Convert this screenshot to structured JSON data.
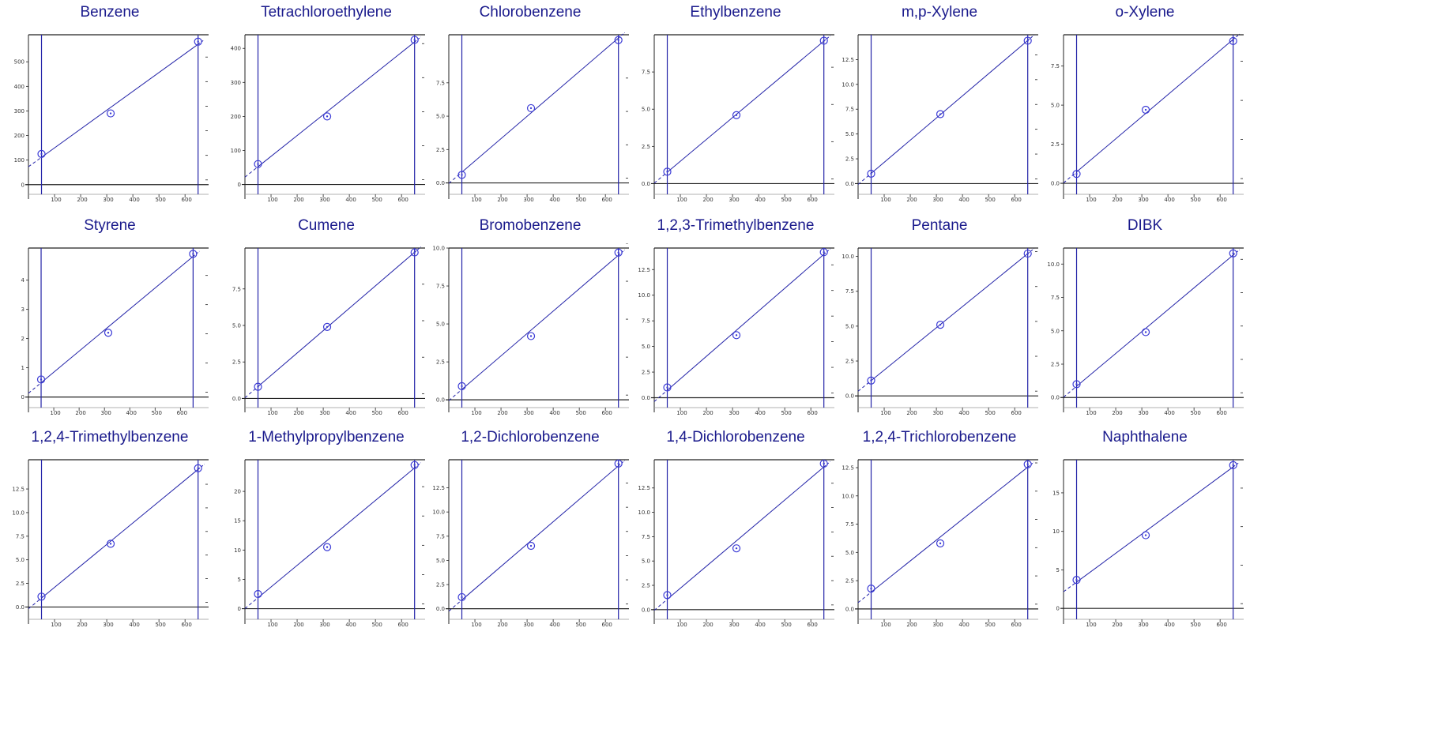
{
  "colors": {
    "title": "#1a1a8c",
    "line": "#2323a8",
    "point": "#3b3bd6",
    "axis": "#222222"
  },
  "chart_data": [
    {
      "type": "scatter",
      "title": "Benzene",
      "x": [
        50,
        315,
        650
      ],
      "y": [
        125,
        290,
        582
      ],
      "xlim": [
        0,
        660
      ],
      "ylim": [
        -20,
        610
      ],
      "xticks": [
        "100",
        "200",
        "300",
        "400",
        "500",
        "600"
      ],
      "yticks": [
        "0",
        "100",
        "200",
        "300",
        "400",
        "500"
      ],
      "ytick_values": [
        0,
        100,
        200,
        300,
        400,
        500
      ],
      "grid": false
    },
    {
      "type": "scatter",
      "title": "Tetrachloroethylene",
      "x": [
        50,
        315,
        650
      ],
      "y": [
        60,
        200,
        425
      ],
      "xlim": [
        0,
        660
      ],
      "ylim": [
        -15,
        440
      ],
      "xticks": [
        "100",
        "200",
        "300",
        "400",
        "500",
        "600"
      ],
      "yticks": [
        "0",
        "100",
        "200",
        "300",
        "400"
      ],
      "ytick_values": [
        0,
        100,
        200,
        300,
        400
      ],
      "grid": false
    },
    {
      "type": "scatter",
      "title": "Chlorobenzene",
      "x": [
        50,
        315,
        650
      ],
      "y": [
        0.6,
        5.6,
        10.7
      ],
      "xlim": [
        0,
        660
      ],
      "ylim": [
        -0.5,
        11.1
      ],
      "xticks": [
        "100",
        "200",
        "300",
        "400",
        "500",
        "600"
      ],
      "yticks": [
        "0.0",
        "2.5",
        "5.0",
        "7.5"
      ],
      "ytick_values": [
        0,
        2.5,
        5,
        7.5
      ],
      "grid": false
    },
    {
      "type": "scatter",
      "title": "Ethylbenzene",
      "x": [
        50,
        315,
        650
      ],
      "y": [
        0.8,
        4.6,
        9.6
      ],
      "xlim": [
        0,
        660
      ],
      "ylim": [
        -0.4,
        10.0
      ],
      "xticks": [
        "100",
        "200",
        "300",
        "400",
        "500",
        "600"
      ],
      "yticks": [
        "0.0",
        "2.5",
        "5.0",
        "7.5"
      ],
      "ytick_values": [
        0,
        2.5,
        5,
        7.5
      ],
      "grid": false
    },
    {
      "type": "scatter",
      "title": "m,p-Xylene",
      "x": [
        50,
        315,
        650
      ],
      "y": [
        1.0,
        7.0,
        14.4
      ],
      "xlim": [
        0,
        660
      ],
      "ylim": [
        -0.6,
        15.0
      ],
      "xticks": [
        "100",
        "200",
        "300",
        "400",
        "500",
        "600"
      ],
      "yticks": [
        "0.0",
        "2.5",
        "5.0",
        "7.5",
        "10.0",
        "12.5"
      ],
      "ytick_values": [
        0,
        2.5,
        5,
        7.5,
        10,
        12.5
      ],
      "grid": false
    },
    {
      "type": "scatter",
      "title": "o-Xylene",
      "x": [
        50,
        315,
        650
      ],
      "y": [
        0.6,
        4.7,
        9.1
      ],
      "xlim": [
        0,
        660
      ],
      "ylim": [
        -0.4,
        9.5
      ],
      "xticks": [
        "100",
        "200",
        "300",
        "400",
        "500",
        "600"
      ],
      "yticks": [
        "0.0",
        "2.5",
        "5.0",
        "7.5"
      ],
      "ytick_values": [
        0,
        2.5,
        5,
        7.5
      ],
      "grid": false
    },
    {
      "type": "scatter",
      "title": "Styrene",
      "x": [
        50,
        315,
        650
      ],
      "y": [
        0.6,
        2.2,
        4.9
      ],
      "xlim": [
        0,
        680
      ],
      "ylim": [
        -0.2,
        5.1
      ],
      "xticks": [
        "100",
        "200",
        "300",
        "400",
        "500",
        "600"
      ],
      "yticks": [
        "0",
        "1",
        "2",
        "3",
        "4"
      ],
      "ytick_values": [
        0,
        1,
        2,
        3,
        4
      ],
      "grid": false
    },
    {
      "type": "scatter",
      "title": "Cumene",
      "x": [
        50,
        315,
        650
      ],
      "y": [
        0.8,
        4.9,
        10.0
      ],
      "xlim": [
        0,
        660
      ],
      "ylim": [
        -0.3,
        10.3
      ],
      "xticks": [
        "100",
        "200",
        "300",
        "400",
        "500",
        "600"
      ],
      "yticks": [
        "0.0",
        "2.5",
        "5.0",
        "7.5"
      ],
      "ytick_values": [
        0,
        2.5,
        5,
        7.5
      ],
      "grid": false
    },
    {
      "type": "scatter",
      "title": "Bromobenzene",
      "x": [
        50,
        315,
        650
      ],
      "y": [
        0.9,
        4.2,
        9.7
      ],
      "xlim": [
        0,
        660
      ],
      "ylim": [
        -0.2,
        10.0
      ],
      "xticks": [
        "100",
        "200",
        "300",
        "400",
        "500",
        "600"
      ],
      "yticks": [
        "0.0",
        "2.5",
        "5.0",
        "7.5",
        "10.0"
      ],
      "ytick_values": [
        0,
        2.5,
        5,
        7.5,
        10
      ],
      "grid": false
    },
    {
      "type": "scatter",
      "title": "1,2,3-Trimethylbenzene",
      "x": [
        50,
        315,
        650
      ],
      "y": [
        1.0,
        6.1,
        14.2
      ],
      "xlim": [
        0,
        660
      ],
      "ylim": [
        -0.5,
        14.6
      ],
      "xticks": [
        "100",
        "200",
        "300",
        "400",
        "500",
        "600"
      ],
      "yticks": [
        "0.0",
        "2.5",
        "5.0",
        "7.5",
        "10.0",
        "12.5"
      ],
      "ytick_values": [
        0,
        2.5,
        5,
        7.5,
        10,
        12.5
      ],
      "grid": false
    },
    {
      "type": "scatter",
      "title": "Pentane",
      "x": [
        50,
        315,
        650
      ],
      "y": [
        1.1,
        5.1,
        10.2
      ],
      "xlim": [
        0,
        660
      ],
      "ylim": [
        -0.5,
        10.6
      ],
      "xticks": [
        "100",
        "200",
        "300",
        "400",
        "500",
        "600"
      ],
      "yticks": [
        "0.0",
        "2.5",
        "5.0",
        "7.5",
        "10.0"
      ],
      "ytick_values": [
        0,
        2.5,
        5,
        7.5,
        10
      ],
      "grid": false
    },
    {
      "type": "scatter",
      "title": "DIBK",
      "x": [
        50,
        315,
        650
      ],
      "y": [
        1.0,
        4.9,
        10.8
      ],
      "xlim": [
        0,
        660
      ],
      "ylim": [
        -0.4,
        11.2
      ],
      "xticks": [
        "100",
        "200",
        "300",
        "400",
        "500",
        "600"
      ],
      "yticks": [
        "0.0",
        "2.5",
        "5.0",
        "7.5",
        "10.0"
      ],
      "ytick_values": [
        0,
        2.5,
        5,
        7.5,
        10
      ],
      "grid": false
    },
    {
      "type": "scatter",
      "title": "1,2,4-Trimethylbenzene",
      "x": [
        50,
        315,
        650
      ],
      "y": [
        1.1,
        6.7,
        14.7
      ],
      "xlim": [
        0,
        660
      ],
      "ylim": [
        -0.8,
        15.6
      ],
      "xticks": [
        "100",
        "200",
        "300",
        "400",
        "500",
        "600"
      ],
      "yticks": [
        "0.0",
        "2.5",
        "5.0",
        "7.5",
        "10.0",
        "12.5"
      ],
      "ytick_values": [
        0,
        2.5,
        5,
        7.5,
        10,
        12.5
      ],
      "grid": false
    },
    {
      "type": "scatter",
      "title": "1-Methylpropylbenzene",
      "x": [
        50,
        315,
        650
      ],
      "y": [
        2.5,
        10.5,
        24.5
      ],
      "xlim": [
        0,
        660
      ],
      "ylim": [
        -1.0,
        25.4
      ],
      "xticks": [
        "100",
        "200",
        "300",
        "400",
        "500",
        "600"
      ],
      "yticks": [
        "0",
        "5",
        "10",
        "15",
        "20"
      ],
      "ytick_values": [
        0,
        5,
        10,
        15,
        20
      ],
      "grid": false
    },
    {
      "type": "scatter",
      "title": "1,2-Dichlorobenzene",
      "x": [
        50,
        315,
        650
      ],
      "y": [
        1.2,
        6.5,
        15.0
      ],
      "xlim": [
        0,
        660
      ],
      "ylim": [
        -0.6,
        15.4
      ],
      "xticks": [
        "100",
        "200",
        "300",
        "400",
        "500",
        "600"
      ],
      "yticks": [
        "0.0",
        "2.5",
        "5.0",
        "7.5",
        "10.0",
        "12.5"
      ],
      "ytick_values": [
        0,
        2.5,
        5,
        7.5,
        10,
        12.5
      ],
      "grid": false
    },
    {
      "type": "scatter",
      "title": "1,4-Dichlorobenzene",
      "x": [
        50,
        315,
        650
      ],
      "y": [
        1.5,
        6.3,
        15.0
      ],
      "xlim": [
        0,
        660
      ],
      "ylim": [
        -0.5,
        15.4
      ],
      "xticks": [
        "100",
        "200",
        "300",
        "400",
        "500",
        "600"
      ],
      "yticks": [
        "0.0",
        "2.5",
        "5.0",
        "7.5",
        "10.0",
        "12.5"
      ],
      "ytick_values": [
        0,
        2.5,
        5,
        7.5,
        10,
        12.5
      ],
      "grid": false
    },
    {
      "type": "scatter",
      "title": "1,2,4-Trichlorobenzene",
      "x": [
        50,
        315,
        650
      ],
      "y": [
        1.8,
        5.8,
        12.8
      ],
      "xlim": [
        0,
        660
      ],
      "ylim": [
        -0.5,
        13.2
      ],
      "xticks": [
        "100",
        "200",
        "300",
        "400",
        "500",
        "600"
      ],
      "yticks": [
        "0.0",
        "2.5",
        "5.0",
        "7.5",
        "10.0",
        "12.5"
      ],
      "ytick_values": [
        0,
        2.5,
        5,
        7.5,
        10,
        12.5
      ],
      "grid": false
    },
    {
      "type": "scatter",
      "title": "Naphthalene",
      "x": [
        50,
        315,
        650
      ],
      "y": [
        3.7,
        9.5,
        18.6
      ],
      "xlim": [
        0,
        660
      ],
      "ylim": [
        -0.8,
        19.3
      ],
      "xticks": [
        "100",
        "200",
        "300",
        "400",
        "500",
        "600"
      ],
      "yticks": [
        "0",
        "5",
        "10",
        "15"
      ],
      "ytick_values": [
        0,
        5,
        10,
        15
      ],
      "grid": false
    }
  ]
}
